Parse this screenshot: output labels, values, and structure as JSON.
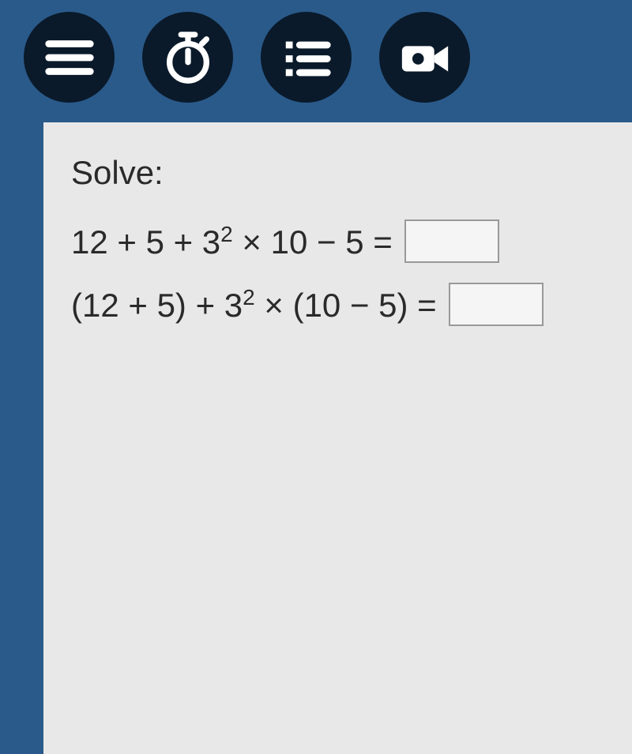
{
  "toolbar": {
    "icons": [
      {
        "name": "menu-icon",
        "type": "hamburger"
      },
      {
        "name": "timer-icon",
        "type": "stopwatch"
      },
      {
        "name": "list-icon",
        "type": "checklist"
      },
      {
        "name": "video-icon",
        "type": "camera"
      }
    ],
    "icon_color": "#ffffff",
    "button_bg": "#0a1a2a"
  },
  "content": {
    "prompt": "Solve:",
    "equations": [
      {
        "expression_html": "12 + 5 + 3<sup>2</sup> × 10 − 5 =",
        "answer": ""
      },
      {
        "expression_html": "(12 + 5) + 3<sup>2</sup> × (10 − 5) =",
        "answer": ""
      }
    ],
    "panel_bg": "#e8e8e8",
    "text_color": "#2a2a2a",
    "font_size": 42,
    "input_border": "#999999"
  },
  "page_bg": "#2a5a8a"
}
